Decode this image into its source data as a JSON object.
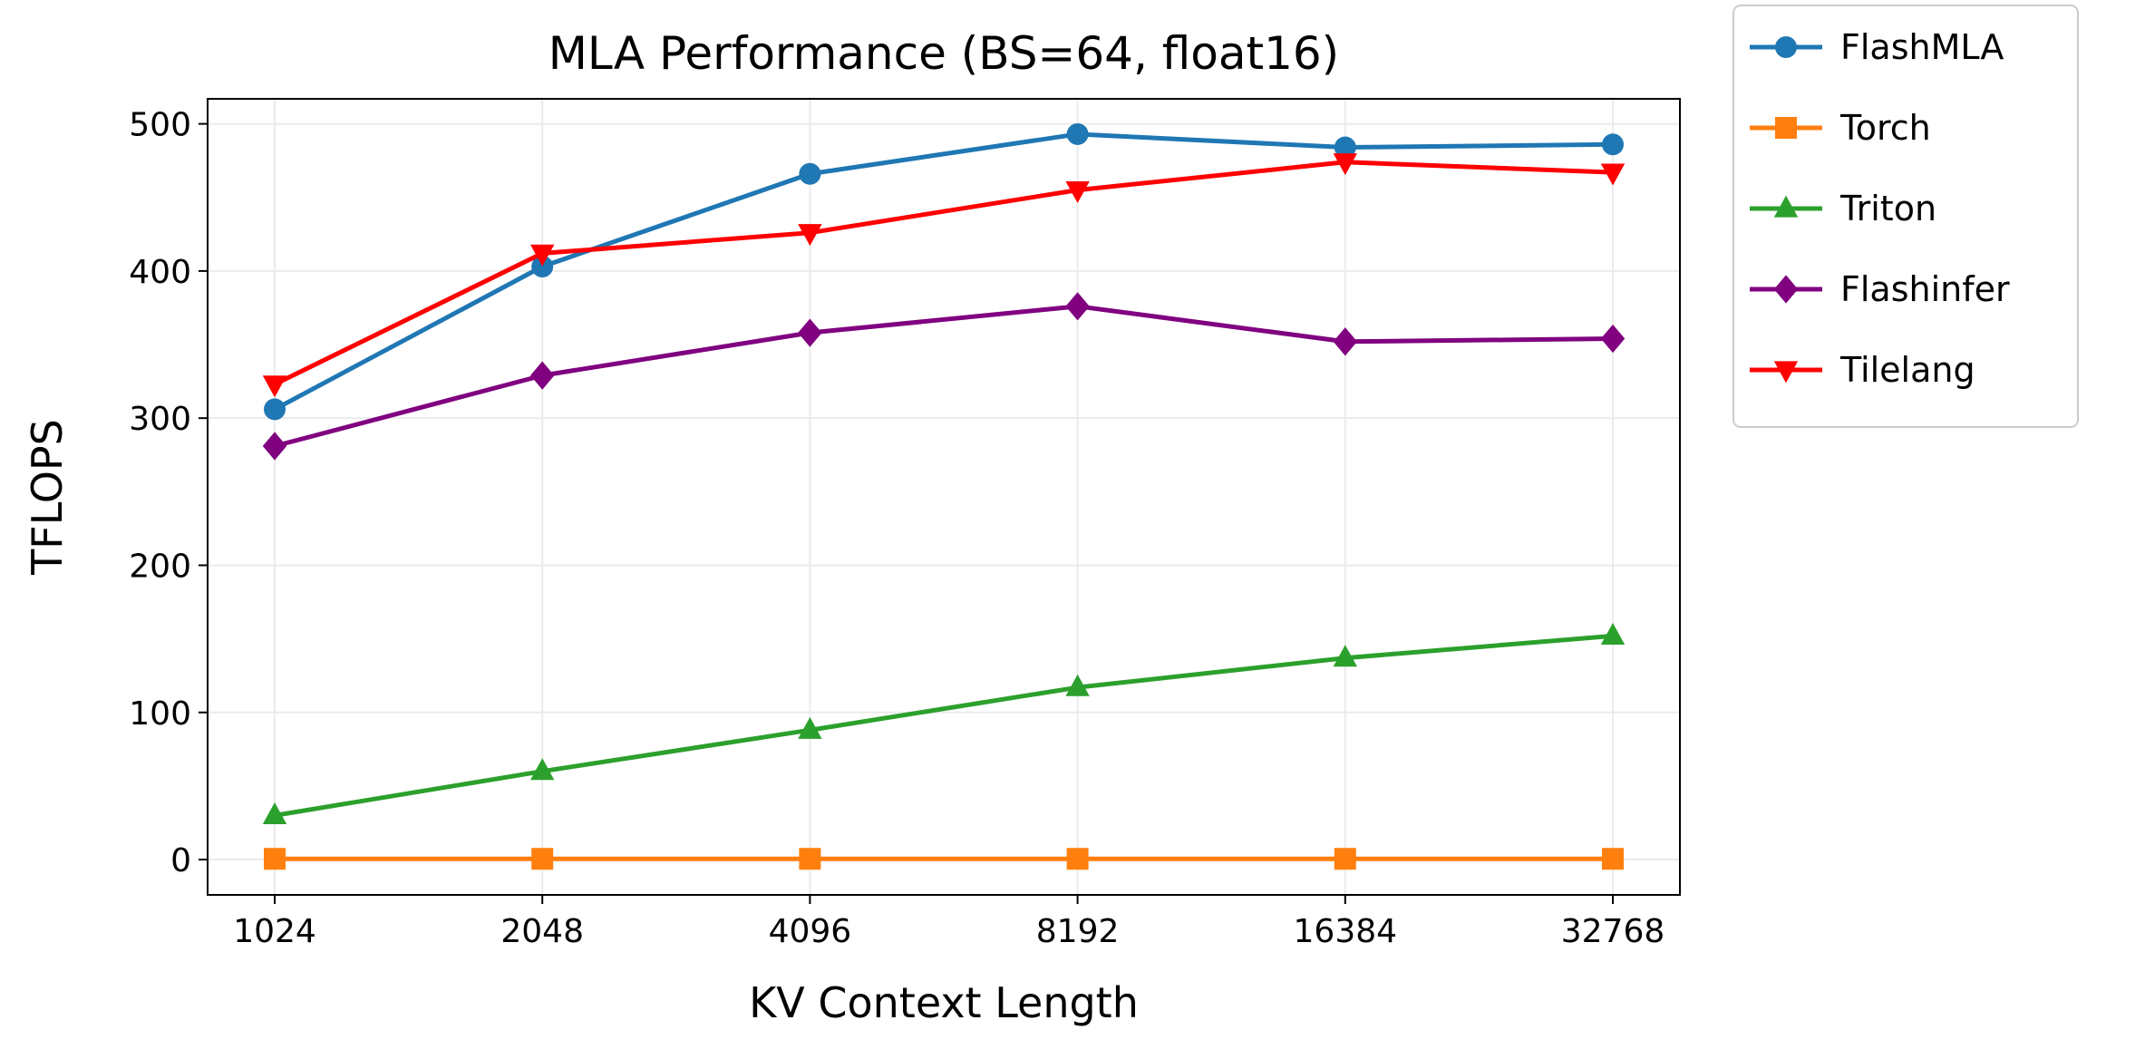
{
  "chart_data": {
    "type": "line",
    "title": "MLA Performance (BS=64, float16)",
    "xlabel": "KV Context Length",
    "ylabel": "TFLOPS",
    "categories": [
      "1024",
      "2048",
      "4096",
      "8192",
      "16384",
      "32768"
    ],
    "ylim": [
      -24,
      517
    ],
    "yticks": [
      "0",
      "100",
      "200",
      "300",
      "400",
      "500"
    ],
    "grid": true,
    "legend_placement": "outside-top-right",
    "series": [
      {
        "name": "FlashMLA",
        "color": "#1f77b4",
        "marker": "circle",
        "values": [
          306,
          403,
          466,
          493,
          484,
          486
        ]
      },
      {
        "name": "Torch",
        "color": "#ff7f0e",
        "marker": "square",
        "values": [
          0.5,
          0.5,
          0.5,
          0.5,
          0.5,
          0.5
        ]
      },
      {
        "name": "Triton",
        "color": "#2ca02c",
        "marker": "triangle-up",
        "values": [
          30,
          60,
          88,
          117,
          137,
          152
        ]
      },
      {
        "name": "Flashinfer",
        "color": "#800080",
        "marker": "diamond",
        "values": [
          281,
          329,
          358,
          376,
          352,
          354
        ]
      },
      {
        "name": "Tilelang",
        "color": "#ff0000",
        "marker": "triangle-down",
        "values": [
          323,
          412,
          426,
          455,
          474,
          467
        ]
      }
    ]
  }
}
